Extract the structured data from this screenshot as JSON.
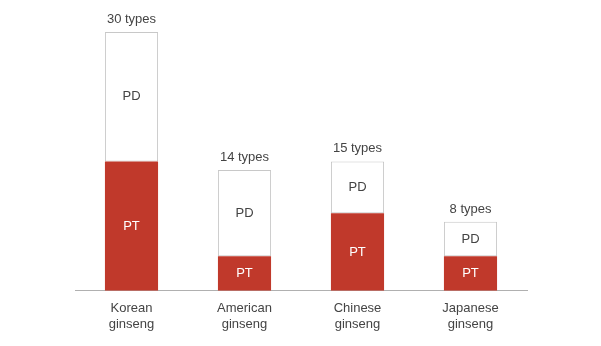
{
  "chart_data": {
    "type": "bar",
    "stacked": true,
    "categories": [
      "Korean ginseng",
      "American ginseng",
      "Chinese ginseng",
      "Japanese ginseng"
    ],
    "series": [
      {
        "name": "PT",
        "color": "#c0392b",
        "values": [
          15,
          4,
          9,
          4
        ]
      },
      {
        "name": "PD",
        "color": "#ffffff",
        "values": [
          15,
          10,
          6,
          4
        ]
      }
    ],
    "totals": [
      30,
      14,
      15,
      8
    ],
    "total_labels": [
      "30 types",
      "14 types",
      "15 types",
      "8 types"
    ],
    "ylim": [
      0,
      30
    ],
    "tick_labels": "x",
    "grid": false
  }
}
